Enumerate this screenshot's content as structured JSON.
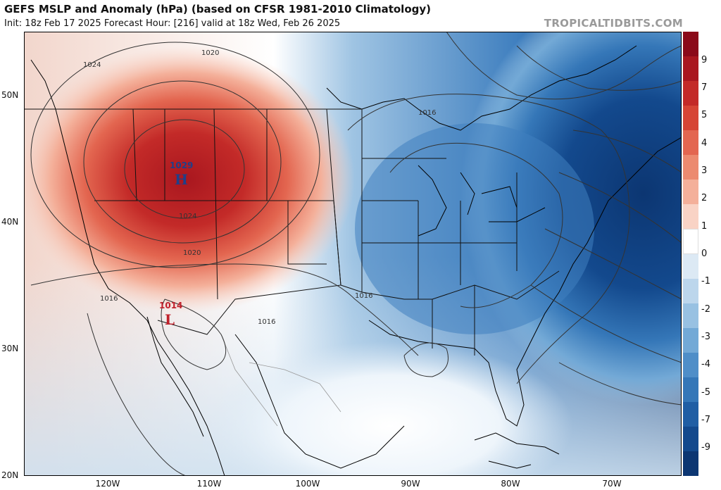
{
  "header": {
    "title": "GEFS MSLP and Anomaly (hPa) (based on CFSR 1981-2010 Climatology)",
    "subtitle": "Init: 18z Feb 17 2025   Forecast Hour: [216]   valid at 18z Wed, Feb 26 2025",
    "brand": "TROPICALTIDBITS.COM"
  },
  "axes": {
    "lat_labels": [
      "50N",
      "40N",
      "30N",
      "20N"
    ],
    "lon_labels": [
      "120W",
      "110W",
      "100W",
      "90W",
      "80W",
      "70W"
    ]
  },
  "colorbar": {
    "labels": [
      "9",
      "7",
      "5",
      "4",
      "3",
      "2",
      "1",
      "0",
      "-1",
      "-2",
      "-3",
      "-4",
      "-5",
      "-7",
      "-9"
    ],
    "colors": [
      "#8b0a19",
      "#a9171f",
      "#c32a28",
      "#d64535",
      "#e36650",
      "#ec8a6f",
      "#f4b09a",
      "#f9d3c5",
      "#ffffff",
      "#dce9f4",
      "#bcd6ec",
      "#98c1e2",
      "#73a9d6",
      "#4f8ec8",
      "#3577b8",
      "#205ea4",
      "#13498d",
      "#0c3672"
    ]
  },
  "pressure_centers": {
    "high": {
      "letter": "H",
      "value": "1029"
    },
    "low": {
      "letter": "L",
      "value": "1014"
    }
  },
  "isobar_labels": [
    "1020",
    "1024",
    "1024",
    "1020",
    "1016",
    "1016",
    "1016",
    "1016"
  ]
}
